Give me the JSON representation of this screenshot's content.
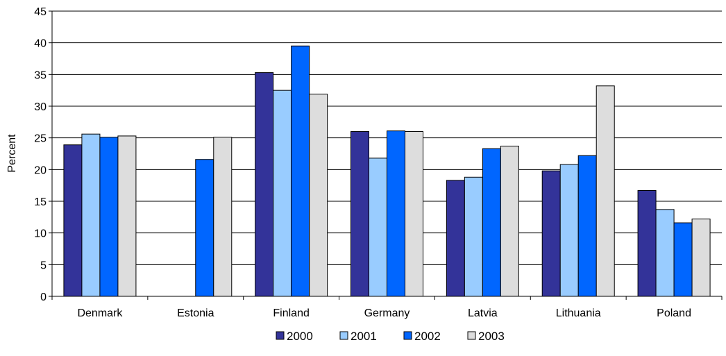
{
  "chart_data": {
    "type": "bar",
    "title": "",
    "xlabel": "",
    "ylabel": "Percent",
    "ylim": [
      0,
      45
    ],
    "yticks": [
      0,
      5,
      10,
      15,
      20,
      25,
      30,
      35,
      40,
      45
    ],
    "grid": true,
    "legend_position": "bottom",
    "categories": [
      "Denmark",
      "Estonia",
      "Finland",
      "Germany",
      "Latvia",
      "Lithuania",
      "Poland"
    ],
    "series": [
      {
        "name": "2000",
        "color": "#333399",
        "values": [
          23.9,
          null,
          35.3,
          26.0,
          18.3,
          19.8,
          16.7
        ]
      },
      {
        "name": "2001",
        "color": "#99CCFF",
        "values": [
          25.6,
          null,
          32.5,
          21.8,
          18.8,
          20.8,
          13.7
        ]
      },
      {
        "name": "2002",
        "color": "#0066FF",
        "values": [
          25.1,
          21.6,
          39.5,
          26.1,
          23.3,
          22.2,
          11.6
        ]
      },
      {
        "name": "2003",
        "color": "#DDDDDD",
        "values": [
          25.3,
          25.1,
          31.9,
          26.0,
          23.7,
          33.2,
          12.2
        ]
      }
    ]
  }
}
